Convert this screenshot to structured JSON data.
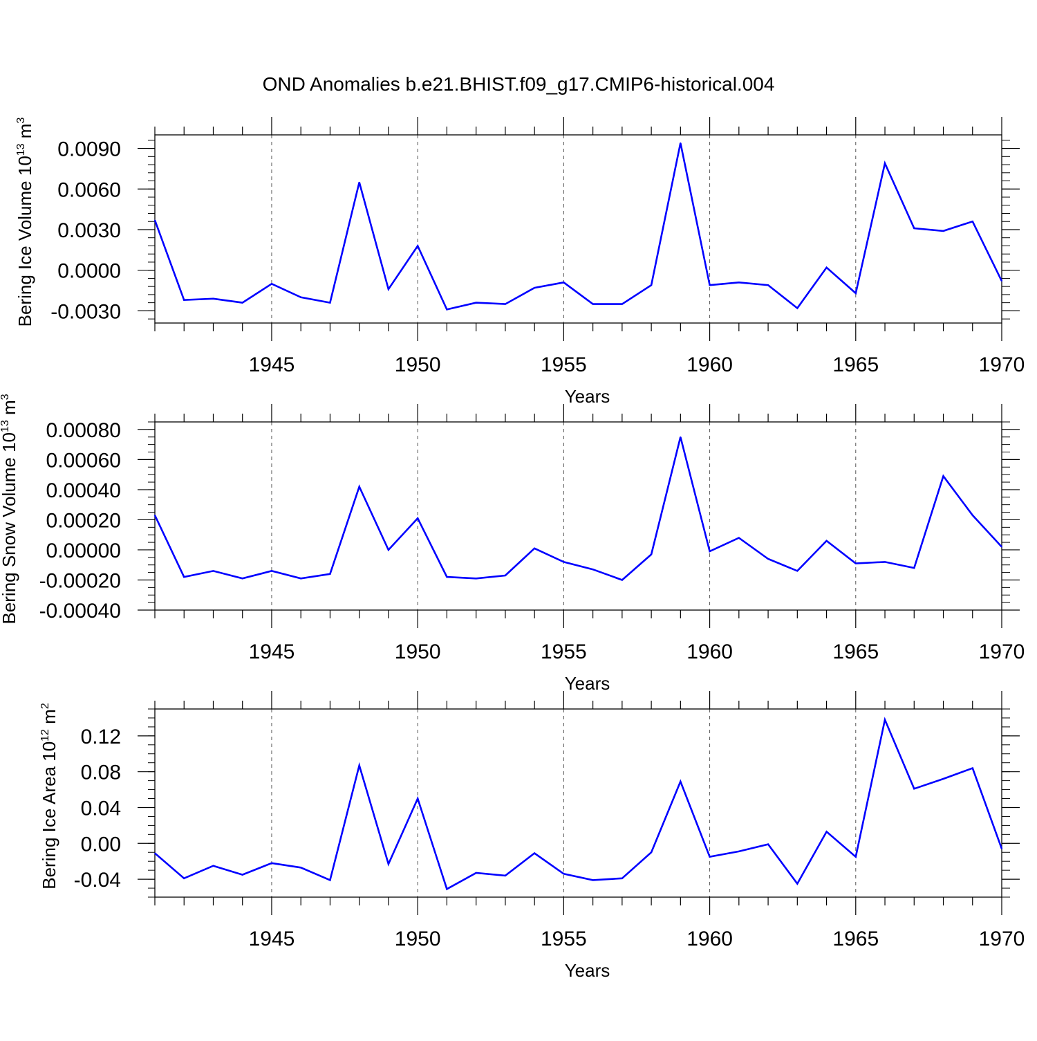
{
  "title": "OND Anomalies b.e21.BHIST.f09_g17.CMIP6-historical.004",
  "line_color": "#0000ff",
  "chart_data": [
    {
      "type": "line",
      "ylabel": {
        "main": "Bering Ice Volume 10",
        "exp": "13",
        "unit": " m",
        "unit_exp": "3"
      },
      "xlabel": "Years",
      "xlim": [
        1941,
        1970
      ],
      "ylim": [
        -0.0039,
        0.01
      ],
      "yticks": [
        -0.003,
        0.0,
        0.003,
        0.006,
        0.009
      ],
      "ytick_labels": [
        "-0.0030",
        "0.0000",
        "0.0030",
        "0.0060",
        "0.0090"
      ],
      "yminor_step": 0.0006,
      "xticks": [
        1945,
        1950,
        1955,
        1960,
        1965,
        1970
      ],
      "xtick_labels": [
        "1945",
        "1950",
        "1955",
        "1960",
        "1965",
        "1970"
      ],
      "x": [
        1941,
        1942,
        1943,
        1944,
        1945,
        1946,
        1947,
        1948,
        1949,
        1950,
        1951,
        1952,
        1953,
        1954,
        1955,
        1956,
        1957,
        1958,
        1959,
        1960,
        1961,
        1962,
        1963,
        1964,
        1965,
        1966,
        1967,
        1968,
        1969,
        1970
      ],
      "series": [
        {
          "name": "Bering Ice Volume",
          "values": [
            0.0037,
            -0.0022,
            -0.0021,
            -0.0024,
            -0.001,
            -0.002,
            -0.0024,
            0.0065,
            -0.0014,
            0.0018,
            -0.0029,
            -0.0024,
            -0.0025,
            -0.0013,
            -0.0009,
            -0.0025,
            -0.0025,
            -0.0011,
            0.0094,
            -0.0011,
            -0.0009,
            -0.0011,
            -0.0028,
            0.0002,
            -0.0017,
            0.0079,
            0.0031,
            0.0029,
            0.0036,
            -0.0008
          ]
        }
      ]
    },
    {
      "type": "line",
      "ylabel": {
        "main": "Bering Snow Volume 10",
        "exp": "13",
        "unit": " m",
        "unit_exp": "3"
      },
      "xlabel": "Years",
      "xlim": [
        1941,
        1970
      ],
      "ylim": [
        -0.0004,
        0.00085
      ],
      "yticks": [
        -0.0004,
        -0.0002,
        0.0,
        0.0002,
        0.0004,
        0.0006,
        0.0008
      ],
      "ytick_labels": [
        "-0.00040",
        "-0.00020",
        "0.00000",
        "0.00020",
        "0.00040",
        "0.00060",
        "0.00080"
      ],
      "yminor_step": 5e-05,
      "xticks": [
        1945,
        1950,
        1955,
        1960,
        1965,
        1970
      ],
      "xtick_labels": [
        "1945",
        "1950",
        "1955",
        "1960",
        "1965",
        "1970"
      ],
      "x": [
        1941,
        1942,
        1943,
        1944,
        1945,
        1946,
        1947,
        1948,
        1949,
        1950,
        1951,
        1952,
        1953,
        1954,
        1955,
        1956,
        1957,
        1958,
        1959,
        1960,
        1961,
        1962,
        1963,
        1964,
        1965,
        1966,
        1967,
        1968,
        1969,
        1970
      ],
      "series": [
        {
          "name": "Bering Snow Volume",
          "values": [
            0.00023,
            -0.00018,
            -0.00014,
            -0.00019,
            -0.00014,
            -0.00019,
            -0.00016,
            0.00042,
            0.0,
            0.00021,
            -0.00018,
            -0.00019,
            -0.00017,
            1e-05,
            -8e-05,
            -0.00013,
            -0.0002,
            -3e-05,
            0.00075,
            -1e-05,
            8e-05,
            -6e-05,
            -0.00014,
            6e-05,
            -9e-05,
            -8e-05,
            -0.00012,
            0.00049,
            0.00023,
            2e-05
          ]
        }
      ]
    },
    {
      "type": "line",
      "ylabel": {
        "main": "Bering Ice Area 10",
        "exp": "12",
        "unit": " m",
        "unit_exp": "2"
      },
      "xlabel": "Years",
      "xlim": [
        1941,
        1970
      ],
      "ylim": [
        -0.06,
        0.15
      ],
      "yticks": [
        -0.04,
        0.0,
        0.04,
        0.08,
        0.12
      ],
      "ytick_labels": [
        "-0.04",
        "0.00",
        "0.04",
        "0.08",
        "0.12"
      ],
      "yminor_step": 0.01,
      "xticks": [
        1945,
        1950,
        1955,
        1960,
        1965,
        1970
      ],
      "xtick_labels": [
        "1945",
        "1950",
        "1955",
        "1960",
        "1965",
        "1970"
      ],
      "x": [
        1941,
        1942,
        1943,
        1944,
        1945,
        1946,
        1947,
        1948,
        1949,
        1950,
        1951,
        1952,
        1953,
        1954,
        1955,
        1956,
        1957,
        1958,
        1959,
        1960,
        1961,
        1962,
        1963,
        1964,
        1965,
        1966,
        1967,
        1968,
        1969,
        1970
      ],
      "series": [
        {
          "name": "Bering Ice Area",
          "values": [
            -0.011,
            -0.039,
            -0.025,
            -0.035,
            -0.022,
            -0.027,
            -0.041,
            0.087,
            -0.023,
            0.05,
            -0.051,
            -0.033,
            -0.036,
            -0.011,
            -0.034,
            -0.041,
            -0.039,
            -0.01,
            0.069,
            -0.015,
            -0.009,
            -0.001,
            -0.045,
            0.013,
            -0.015,
            0.138,
            0.061,
            0.072,
            0.084,
            -0.006
          ]
        }
      ]
    }
  ]
}
